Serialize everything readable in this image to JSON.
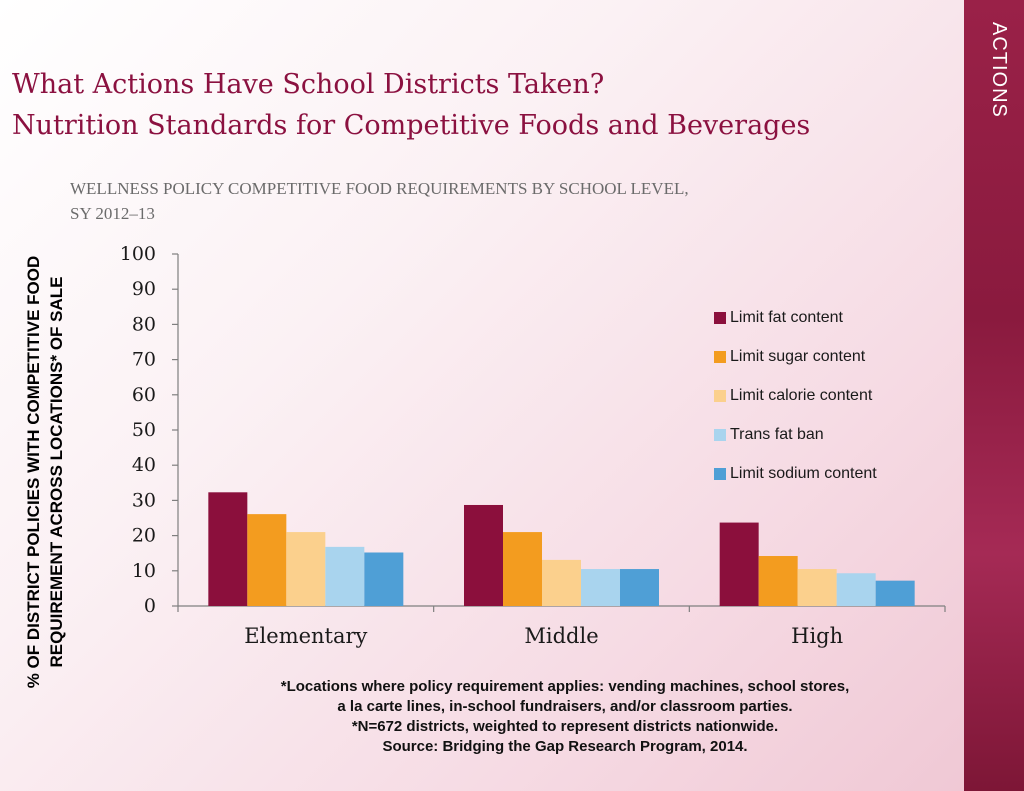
{
  "side_label": "ACTIONS",
  "title": {
    "line1": "What Actions Have School Districts Taken?",
    "line2": "Nutrition Standards for Competitive Foods and Beverages"
  },
  "subtitle": {
    "line1": "WELLNESS POLICY COMPETITIVE FOOD REQUIREMENTS BY SCHOOL LEVEL,",
    "line2": "SY 2012–13"
  },
  "colors": {
    "title": "#8b1140",
    "band": "#8a1a3e"
  },
  "chart_data": {
    "type": "bar",
    "title": "Wellness Policy Competitive Food Requirements by School Level, SY 2012–13",
    "xlabel": "",
    "ylabel": "% OF DISTRICT POLICIES WITH COMPETITIVE FOOD REQUIREMENT ACROSS LOCATIONS* OF SALE",
    "ylabel_lines": [
      "% OF DISTRICT POLICIES WITH COMPETITIVE FOOD",
      "REQUIREMENT ACROSS LOCATIONS* OF SALE"
    ],
    "ylim": [
      0,
      100
    ],
    "yticks": [
      0,
      10,
      20,
      30,
      40,
      50,
      60,
      70,
      80,
      90,
      100
    ],
    "grid": false,
    "legend_position": "right",
    "categories": [
      "Elementary",
      "Middle",
      "High"
    ],
    "series": [
      {
        "name": "Limit fat content",
        "color": "#8b0f3c",
        "values": [
          32.3,
          28.7,
          23.7
        ]
      },
      {
        "name": "Limit sugar content",
        "color": "#f39c1f",
        "values": [
          26.1,
          21.0,
          14.2
        ]
      },
      {
        "name": "Limit calorie content",
        "color": "#fbd08d",
        "values": [
          21.0,
          13.1,
          10.5
        ]
      },
      {
        "name": "Trans fat ban",
        "color": "#a9d4ee",
        "values": [
          16.8,
          10.5,
          9.3
        ]
      },
      {
        "name": "Limit sodium content",
        "color": "#4f9fd6",
        "values": [
          15.2,
          10.5,
          7.2
        ]
      }
    ]
  },
  "footnote": {
    "line1": "*Locations where policy requirement applies: vending machines, school stores,",
    "line2": "a la carte lines, in-school fundraisers, and/or classroom parties.",
    "line3": "*N=672 districts, weighted to represent districts nationwide.",
    "line4": "Source: Bridging the Gap Research Program, 2014."
  }
}
